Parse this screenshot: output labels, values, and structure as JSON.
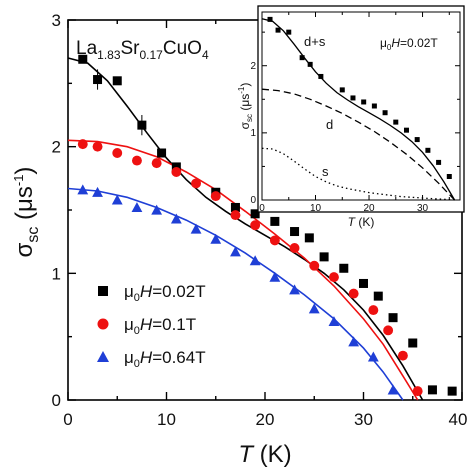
{
  "chart_data": [
    {
      "type": "scatter",
      "title": "",
      "annotation": {
        "base": "La",
        "sub1": "1.83",
        "mid": "Sr",
        "sub2": "0.17",
        "tail": "CuO",
        "sub3": "4"
      },
      "xlabel": {
        "main": "T",
        "unit": "(K)"
      },
      "ylabel": {
        "main": "σ",
        "sub": "sc",
        "unit_open": "(μs",
        "unit_sup": "-1",
        "unit_close": ")"
      },
      "xlim": [
        0,
        40
      ],
      "ylim": [
        0,
        3
      ],
      "xticks": [
        "0",
        "10",
        "20",
        "30",
        "40"
      ],
      "yticks": [
        "0",
        "1",
        "2",
        "3"
      ],
      "grid": false,
      "legend_position": "lower-left",
      "series": [
        {
          "name": "μ0H=0.02T",
          "legend": {
            "mu": "μ",
            "sub": "0",
            "italic": "H",
            "rest": "=0.02T"
          },
          "color": "#000000",
          "marker": "square",
          "x": [
            1.5,
            3,
            5,
            7.5,
            9.5,
            11,
            15,
            17,
            19,
            21,
            23,
            24.5,
            26,
            28,
            30,
            31.5,
            33,
            35,
            37,
            39
          ],
          "y": [
            2.69,
            2.53,
            2.52,
            2.17,
            1.95,
            1.84,
            1.64,
            1.52,
            1.47,
            1.41,
            1.33,
            1.28,
            1.13,
            1.04,
            0.92,
            0.82,
            0.65,
            0.45,
            0.08,
            0.07
          ],
          "fit": {
            "x": [
              0,
              2,
              4,
              6,
              8,
              10,
              12,
              14,
              16,
              18,
              20,
              22,
              24,
              26,
              28,
              30,
              32,
              34,
              36
            ],
            "y": [
              2.7,
              2.66,
              2.52,
              2.32,
              2.11,
              1.91,
              1.74,
              1.6,
              1.49,
              1.39,
              1.3,
              1.21,
              1.11,
              1.0,
              0.87,
              0.71,
              0.51,
              0.27,
              0.0
            ]
          }
        },
        {
          "name": "μ0H=0.1T",
          "legend": {
            "mu": "μ",
            "sub": "0",
            "italic": "H",
            "rest": "=0.1T"
          },
          "color": "#ee1111",
          "marker": "circle",
          "x": [
            1.5,
            3,
            5,
            7,
            9,
            11,
            13,
            15,
            17,
            19,
            21,
            23,
            25,
            27,
            29,
            31,
            32.5,
            34,
            35.5
          ],
          "y": [
            2.02,
            2.0,
            1.95,
            1.89,
            1.87,
            1.8,
            1.71,
            1.61,
            1.46,
            1.38,
            1.26,
            1.2,
            1.06,
            0.97,
            0.84,
            0.71,
            0.55,
            0.35,
            0.07
          ],
          "fit": {
            "x": [
              0,
              3,
              6,
              9,
              12,
              15,
              18,
              21,
              24,
              27,
              30,
              32,
              34,
              35.5
            ],
            "y": [
              2.05,
              2.04,
              2.0,
              1.92,
              1.8,
              1.66,
              1.49,
              1.31,
              1.12,
              0.9,
              0.64,
              0.44,
              0.19,
              0.0
            ]
          }
        },
        {
          "name": "μ0H=0.64T",
          "legend": {
            "mu": "μ",
            "sub": "0",
            "italic": "H",
            "rest": "=0.64T"
          },
          "color": "#1f3fd6",
          "marker": "triangle",
          "x": [
            1.5,
            3,
            5,
            7,
            9,
            11,
            13,
            15,
            17,
            19,
            21,
            23,
            25,
            27,
            29,
            31,
            33
          ],
          "y": [
            1.66,
            1.64,
            1.58,
            1.52,
            1.5,
            1.43,
            1.35,
            1.27,
            1.17,
            1.1,
            0.97,
            0.87,
            0.72,
            0.62,
            0.46,
            0.34,
            0.08
          ],
          "fit": {
            "x": [
              0,
              3,
              6,
              9,
              12,
              15,
              18,
              21,
              24,
              27,
              30,
              32,
              34
            ],
            "y": [
              1.67,
              1.65,
              1.6,
              1.52,
              1.42,
              1.3,
              1.16,
              1.0,
              0.83,
              0.64,
              0.41,
              0.22,
              0.0
            ]
          }
        }
      ]
    },
    {
      "type": "line",
      "title": "",
      "field_label": {
        "mu": "μ",
        "sub": "0",
        "italic": "H",
        "rest": "=0.02T"
      },
      "xlabel": {
        "main": "T",
        "unit": "(K)"
      },
      "ylabel": {
        "main": "σ",
        "sub": "sc",
        "unit_open": "(μs",
        "unit_sup": "-1",
        "unit_close": ")"
      },
      "xlim": [
        0,
        37
      ],
      "ylim": [
        0,
        2.8
      ],
      "xticks": [
        "0",
        "10",
        "20",
        "30"
      ],
      "yticks": [
        "0",
        "1",
        "2"
      ],
      "grid": false,
      "data_points": {
        "marker": "square",
        "x": [
          1.5,
          3,
          5,
          7.5,
          9,
          11,
          15,
          17,
          19,
          21,
          23,
          25,
          27,
          29,
          31,
          33,
          35
        ],
        "y": [
          2.69,
          2.53,
          2.5,
          2.12,
          2.02,
          1.84,
          1.64,
          1.52,
          1.46,
          1.4,
          1.3,
          1.16,
          1.04,
          0.9,
          0.74,
          0.56,
          0.35
        ]
      },
      "curves": [
        {
          "name": "d+s",
          "style": "solid",
          "x": [
            0,
            2,
            4,
            6,
            8,
            10,
            12,
            14,
            16,
            18,
            20,
            22,
            24,
            26,
            28,
            30,
            32,
            34,
            36
          ],
          "y": [
            2.7,
            2.66,
            2.52,
            2.32,
            2.11,
            1.91,
            1.74,
            1.6,
            1.49,
            1.39,
            1.3,
            1.21,
            1.11,
            1.0,
            0.87,
            0.71,
            0.51,
            0.27,
            0.0
          ]
        },
        {
          "name": "d",
          "style": "dashed",
          "x": [
            0,
            3,
            6,
            9,
            12,
            15,
            18,
            21,
            24,
            27,
            30,
            33,
            36
          ],
          "y": [
            1.65,
            1.63,
            1.58,
            1.5,
            1.4,
            1.29,
            1.16,
            1.02,
            0.86,
            0.68,
            0.48,
            0.25,
            0.0
          ]
        },
        {
          "name": "s",
          "style": "dotted",
          "x": [
            0,
            2,
            4,
            6,
            8,
            10,
            12,
            14,
            16,
            18,
            20,
            22,
            24,
            26,
            28,
            30,
            32,
            34,
            36
          ],
          "y": [
            0.77,
            0.76,
            0.69,
            0.58,
            0.46,
            0.35,
            0.27,
            0.21,
            0.17,
            0.14,
            0.11,
            0.09,
            0.07,
            0.05,
            0.04,
            0.03,
            0.02,
            0.01,
            0.0
          ]
        }
      ]
    }
  ]
}
